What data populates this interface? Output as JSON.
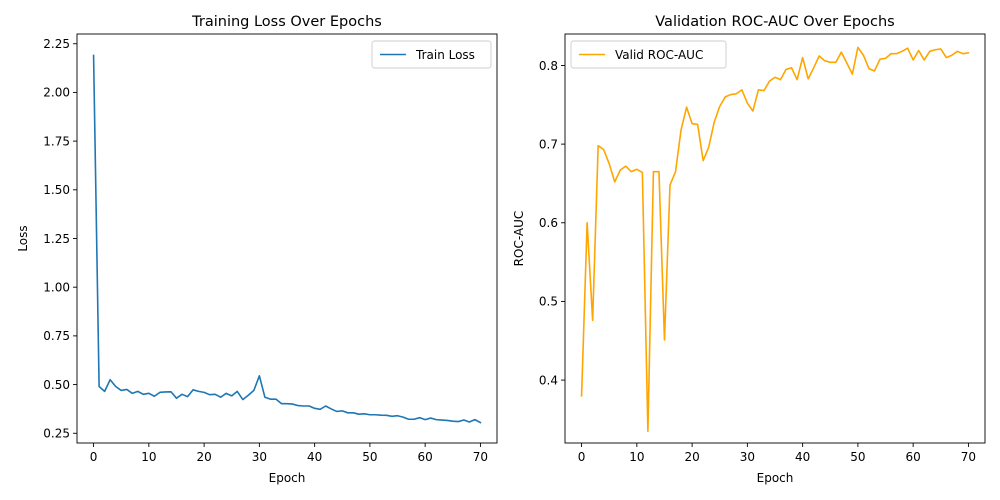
{
  "chart_data": [
    {
      "type": "line",
      "title": "Training Loss Over Epochs",
      "xlabel": "Epoch",
      "ylabel": "Loss",
      "xlim": [
        -3,
        73
      ],
      "ylim": [
        0.2,
        2.3
      ],
      "xticks": [
        0,
        10,
        20,
        30,
        40,
        50,
        60,
        70
      ],
      "xtick_labels": [
        "0",
        "10",
        "20",
        "30",
        "40",
        "50",
        "60",
        "70"
      ],
      "yticks": [
        0.25,
        0.5,
        0.75,
        1.0,
        1.25,
        1.5,
        1.75,
        2.0,
        2.25
      ],
      "ytick_labels": [
        "0.25",
        "0.50",
        "0.75",
        "1.00",
        "1.25",
        "1.50",
        "1.75",
        "2.00",
        "2.25"
      ],
      "legend_position": "top-right",
      "grid": false,
      "series": [
        {
          "name": "Train Loss",
          "color": "#1f77b4",
          "x": [
            0,
            1,
            2,
            3,
            4,
            5,
            6,
            7,
            8,
            9,
            10,
            11,
            12,
            13,
            14,
            15,
            16,
            17,
            18,
            19,
            20,
            21,
            22,
            23,
            24,
            25,
            26,
            27,
            28,
            29,
            30,
            31,
            32,
            33,
            34,
            35,
            36,
            37,
            38,
            39,
            40,
            41,
            42,
            43,
            44,
            45,
            46,
            47,
            48,
            49,
            50,
            51,
            52,
            53,
            54,
            55,
            56,
            57,
            58,
            59,
            60,
            61,
            62,
            63,
            64,
            65,
            66,
            67,
            68,
            69,
            70
          ],
          "values": [
            2.19,
            0.49,
            0.465,
            0.525,
            0.49,
            0.47,
            0.475,
            0.455,
            0.465,
            0.45,
            0.455,
            0.44,
            0.46,
            0.462,
            0.463,
            0.43,
            0.45,
            0.438,
            0.473,
            0.465,
            0.46,
            0.448,
            0.45,
            0.435,
            0.455,
            0.442,
            0.465,
            0.423,
            0.445,
            0.47,
            0.545,
            0.435,
            0.425,
            0.425,
            0.402,
            0.402,
            0.4,
            0.392,
            0.39,
            0.39,
            0.378,
            0.373,
            0.39,
            0.375,
            0.362,
            0.365,
            0.355,
            0.355,
            0.348,
            0.35,
            0.345,
            0.345,
            0.343,
            0.342,
            0.337,
            0.34,
            0.333,
            0.322,
            0.322,
            0.33,
            0.32,
            0.328,
            0.32,
            0.318,
            0.316,
            0.312,
            0.31,
            0.318,
            0.308,
            0.32,
            0.305
          ]
        }
      ]
    },
    {
      "type": "line",
      "title": "Validation ROC-AUC Over Epochs",
      "xlabel": "Epoch",
      "ylabel": "ROC-AUC",
      "xlim": [
        -3,
        73
      ],
      "ylim": [
        0.32,
        0.84
      ],
      "xticks": [
        0,
        10,
        20,
        30,
        40,
        50,
        60,
        70
      ],
      "xtick_labels": [
        "0",
        "10",
        "20",
        "30",
        "40",
        "50",
        "60",
        "70"
      ],
      "yticks": [
        0.4,
        0.5,
        0.6,
        0.7,
        0.8
      ],
      "ytick_labels": [
        "0.4",
        "0.5",
        "0.6",
        "0.7",
        "0.8"
      ],
      "legend_position": "top-left",
      "grid": false,
      "series": [
        {
          "name": "Valid ROC-AUC",
          "color": "#ffa500",
          "x": [
            0,
            1,
            2,
            3,
            4,
            5,
            6,
            7,
            8,
            9,
            10,
            11,
            12,
            13,
            14,
            15,
            16,
            17,
            18,
            19,
            20,
            21,
            22,
            23,
            24,
            25,
            26,
            27,
            28,
            29,
            30,
            31,
            32,
            33,
            34,
            35,
            36,
            37,
            38,
            39,
            40,
            41,
            42,
            43,
            44,
            45,
            46,
            47,
            48,
            49,
            50,
            51,
            52,
            53,
            54,
            55,
            56,
            57,
            58,
            59,
            60,
            61,
            62,
            63,
            64,
            65,
            66,
            67,
            68,
            69,
            70
          ],
          "values": [
            0.38,
            0.6,
            0.476,
            0.698,
            0.693,
            0.675,
            0.652,
            0.667,
            0.672,
            0.665,
            0.668,
            0.664,
            0.335,
            0.665,
            0.665,
            0.451,
            0.648,
            0.665,
            0.718,
            0.747,
            0.726,
            0.725,
            0.679,
            0.696,
            0.728,
            0.748,
            0.76,
            0.763,
            0.764,
            0.769,
            0.752,
            0.742,
            0.769,
            0.768,
            0.78,
            0.785,
            0.782,
            0.795,
            0.797,
            0.782,
            0.81,
            0.783,
            0.797,
            0.812,
            0.806,
            0.804,
            0.804,
            0.817,
            0.803,
            0.789,
            0.823,
            0.813,
            0.796,
            0.793,
            0.808,
            0.809,
            0.815,
            0.815,
            0.818,
            0.822,
            0.807,
            0.819,
            0.807,
            0.818,
            0.82,
            0.821,
            0.81,
            0.813,
            0.818,
            0.815,
            0.816
          ]
        }
      ]
    }
  ]
}
